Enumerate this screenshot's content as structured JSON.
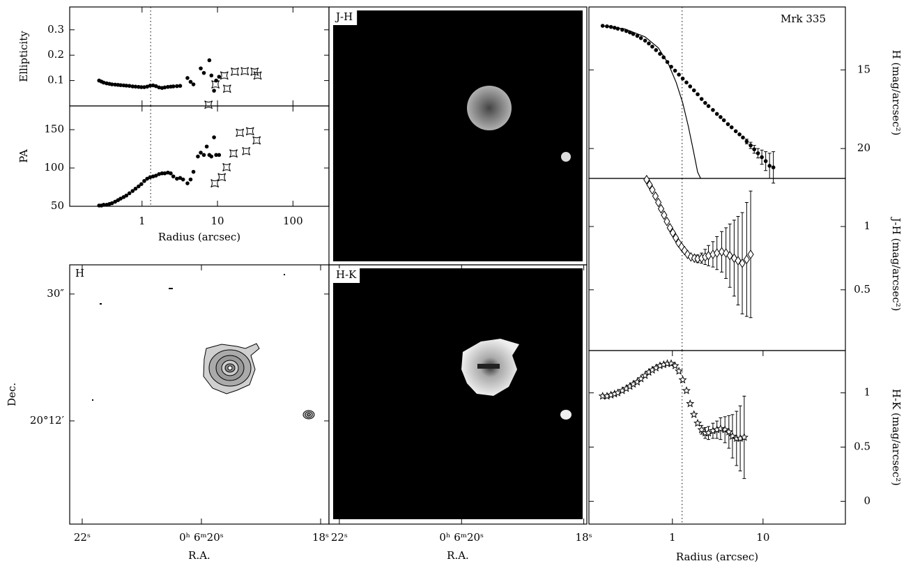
{
  "chart_data": [
    {
      "type": "scatter",
      "ylabel": "Ellipticity",
      "xlog": true,
      "xlim": [
        0.11,
        300
      ],
      "ylim": [
        0,
        0.39
      ],
      "yticks": [
        0.1,
        0.2,
        0.3
      ],
      "vline": 1.3,
      "series": [
        {
          "marker": "circle",
          "color": "#000",
          "x": [
            0.27,
            0.29,
            0.31,
            0.34,
            0.37,
            0.4,
            0.44,
            0.48,
            0.52,
            0.57,
            0.62,
            0.68,
            0.75,
            0.82,
            0.9,
            0.98,
            1.07,
            1.17,
            1.28,
            1.4,
            1.53,
            1.68,
            1.84,
            2.0,
            2.2,
            2.4,
            2.6,
            2.9,
            3.2,
            4.0,
            4.4,
            4.8,
            6.0,
            6.6,
            7.8,
            8.3,
            9.0,
            9.6,
            10.5
          ],
          "values": [
            0.1,
            0.096,
            0.092,
            0.089,
            0.087,
            0.085,
            0.084,
            0.083,
            0.082,
            0.081,
            0.08,
            0.079,
            0.077,
            0.076,
            0.075,
            0.074,
            0.074,
            0.076,
            0.08,
            0.081,
            0.078,
            0.073,
            0.071,
            0.073,
            0.075,
            0.076,
            0.077,
            0.078,
            0.079,
            0.11,
            0.095,
            0.085,
            0.148,
            0.13,
            0.18,
            0.12,
            0.06,
            0.1,
            0.115
          ]
        },
        {
          "marker": "square",
          "color": "#000",
          "x": [
            7.6,
            9.4,
            12.3,
            13.4,
            17,
            23,
            31,
            34
          ],
          "values": [
            0.005,
            0.085,
            0.12,
            0.068,
            0.135,
            0.137,
            0.135,
            0.12
          ]
        }
      ]
    },
    {
      "type": "scatter",
      "ylabel": "PA",
      "xlabel": "Radius (arcsec)",
      "xlog": true,
      "xlim": [
        0.11,
        300
      ],
      "ylim": [
        50,
        181
      ],
      "yticks": [
        50,
        100,
        150
      ],
      "xticks": [
        1,
        10,
        100
      ],
      "vline": 1.3,
      "series": [
        {
          "marker": "circle",
          "color": "#000",
          "x": [
            0.27,
            0.29,
            0.31,
            0.34,
            0.37,
            0.4,
            0.44,
            0.48,
            0.52,
            0.57,
            0.62,
            0.68,
            0.75,
            0.82,
            0.9,
            0.98,
            1.07,
            1.17,
            1.28,
            1.4,
            1.53,
            1.68,
            1.84,
            2.0,
            2.2,
            2.4,
            2.6,
            2.9,
            3.2,
            3.5,
            4.0,
            4.4,
            4.8,
            5.5,
            6.0,
            6.6,
            7.2,
            7.8,
            8.3,
            9.0,
            9.6,
            10.5
          ],
          "values": [
            51,
            51,
            52,
            52,
            53,
            54,
            56,
            58,
            60,
            62,
            64,
            67,
            70,
            73,
            76,
            79,
            83,
            86,
            88,
            89,
            90,
            92,
            93,
            93,
            94,
            93,
            89,
            86,
            87,
            85,
            80,
            85,
            95,
            115,
            120,
            117,
            128,
            117,
            115,
            140,
            117,
            117
          ]
        },
        {
          "marker": "square",
          "color": "#000",
          "x": [
            9.2,
            11.4,
            13.2,
            16.3,
            19.8,
            24,
            27,
            33
          ],
          "values": [
            80,
            88,
            101,
            119,
            146,
            122,
            148,
            136
          ]
        }
      ]
    },
    {
      "type": "image",
      "title": "H",
      "xlabel": "R.A.",
      "ylabel": "Dec.",
      "xlim": [
        22.21,
        17.86
      ],
      "ylim": [
        -24.4,
        36.9
      ],
      "xticks": [
        {
          "value": 22,
          "label": "22ˢ"
        },
        {
          "value": 20,
          "label": "0ʰ 6ᵐ20ˢ"
        },
        {
          "value": 18,
          "label": "18ˢ"
        }
      ],
      "yticks": [
        {
          "value": 30,
          "label": "30″"
        },
        {
          "value": 0,
          "label": "20°12′"
        }
      ]
    },
    {
      "type": "image",
      "title": "J-H"
    },
    {
      "type": "image",
      "title": "H-K",
      "xlabel": "R.A.",
      "xlim": [
        22.17,
        17.95
      ],
      "xticks": [
        {
          "value": 22,
          "label": "22ˢ"
        },
        {
          "value": 20,
          "label": "0ʰ 6ᵐ20ˢ"
        },
        {
          "value": 18,
          "label": "18ˢ"
        }
      ]
    },
    {
      "type": "scatter",
      "ylabel": "H (mag/arcsec²)",
      "annotation": "Mrk 335",
      "xlog": true,
      "xlim": [
        0.12,
        81
      ],
      "ylim": [
        21.9,
        11.0
      ],
      "yticks": [
        15,
        20
      ],
      "vline": 1.28,
      "series": [
        {
          "marker": "circle",
          "color": "#000",
          "x": [
            0.17,
            0.19,
            0.21,
            0.23,
            0.25,
            0.28,
            0.31,
            0.34,
            0.37,
            0.41,
            0.45,
            0.5,
            0.55,
            0.6,
            0.66,
            0.73,
            0.8,
            0.88,
            0.97,
            1.07,
            1.18,
            1.3,
            1.43,
            1.57,
            1.73,
            1.9,
            2.1,
            2.3,
            2.5,
            2.8,
            3.1,
            3.4,
            3.7,
            4.1,
            4.5,
            5.0,
            5.5,
            6.0,
            6.6,
            7.3,
            8.0,
            8.8,
            9.7,
            10.7,
            11.8,
            13
          ],
          "values": [
            12.2,
            12.23,
            12.27,
            12.32,
            12.38,
            12.45,
            12.53,
            12.62,
            12.72,
            12.84,
            12.98,
            13.14,
            13.32,
            13.52,
            13.74,
            13.98,
            14.2,
            14.5,
            14.8,
            15.05,
            15.3,
            15.55,
            15.8,
            16.05,
            16.3,
            16.55,
            16.85,
            17.1,
            17.3,
            17.55,
            17.8,
            18.0,
            18.2,
            18.45,
            18.65,
            18.9,
            19.1,
            19.3,
            19.55,
            19.8,
            20.05,
            20.3,
            20.55,
            20.8,
            21.1,
            21.2
          ],
          "errors": [
            null,
            null,
            null,
            null,
            null,
            null,
            null,
            null,
            null,
            null,
            null,
            null,
            null,
            null,
            null,
            null,
            null,
            null,
            null,
            null,
            null,
            null,
            null,
            null,
            null,
            null,
            null,
            null,
            null,
            null,
            null,
            null,
            null,
            null,
            null,
            null,
            null,
            null,
            0.15,
            0.2,
            0.25,
            0.3,
            0.45,
            0.6,
            0.8,
            1.0
          ]
        },
        {
          "line": true,
          "color": "#000",
          "x": [
            0.17,
            0.3,
            0.5,
            0.7,
            0.9,
            1.1,
            1.3,
            1.5,
            1.7,
            1.9,
            2.05
          ],
          "values": [
            12.2,
            12.4,
            12.9,
            13.6,
            14.6,
            15.8,
            17.1,
            18.6,
            20.1,
            21.5,
            21.9
          ]
        }
      ]
    },
    {
      "type": "scatter",
      "ylabel": "J-H (mag/arcsec²)",
      "xlog": true,
      "xlim": [
        0.12,
        81
      ],
      "ylim": [
        0.02,
        1.38
      ],
      "yticks": [
        0.5,
        1
      ],
      "vline": 1.28,
      "series": [
        {
          "marker": "diamond",
          "color": "#000",
          "x": [
            0.52,
            0.56,
            0.6,
            0.65,
            0.7,
            0.75,
            0.81,
            0.87,
            0.94,
            1.01,
            1.09,
            1.17,
            1.26,
            1.36,
            1.47,
            1.6,
            1.75,
            1.9,
            2.1,
            2.3,
            2.5,
            2.8,
            3.1,
            3.5,
            3.9,
            4.3,
            4.8,
            5.3,
            5.9,
            6.6,
            7.3
          ],
          "values": [
            1.37,
            1.33,
            1.29,
            1.24,
            1.19,
            1.14,
            1.09,
            1.04,
            0.99,
            0.95,
            0.91,
            0.87,
            0.84,
            0.81,
            0.78,
            0.76,
            0.75,
            0.745,
            0.75,
            0.76,
            0.77,
            0.78,
            0.79,
            0.8,
            0.79,
            0.77,
            0.75,
            0.73,
            0.71,
            0.74,
            0.78
          ],
          "errors": [
            null,
            null,
            null,
            null,
            null,
            null,
            null,
            null,
            null,
            null,
            null,
            null,
            null,
            null,
            null,
            null,
            null,
            0.03,
            0.04,
            0.06,
            0.08,
            0.1,
            0.13,
            0.16,
            0.2,
            0.25,
            0.3,
            0.35,
            0.4,
            0.45,
            0.5
          ]
        }
      ]
    },
    {
      "type": "scatter",
      "ylabel": "H-K (mag/arcsec²)",
      "xlabel": "Radius (arcsec)",
      "xlog": true,
      "xlim": [
        0.12,
        81
      ],
      "ylim": [
        -0.21,
        1.39
      ],
      "yticks": [
        0,
        0.5,
        1
      ],
      "xticks": [
        1,
        10
      ],
      "vline": 1.28,
      "series": [
        {
          "marker": "star",
          "color": "#000",
          "x": [
            0.17,
            0.19,
            0.21,
            0.23,
            0.25,
            0.28,
            0.31,
            0.34,
            0.37,
            0.41,
            0.45,
            0.5,
            0.55,
            0.6,
            0.66,
            0.73,
            0.8,
            0.88,
            0.97,
            1.07,
            1.18,
            1.3,
            1.43,
            1.57,
            1.73,
            1.9,
            2.1,
            2.3,
            2.5,
            2.8,
            3.1,
            3.4,
            3.8,
            4.2,
            4.6,
            5.1,
            5.6,
            6.2
          ],
          "values": [
            0.97,
            0.97,
            0.98,
            0.99,
            1.0,
            1.02,
            1.04,
            1.06,
            1.08,
            1.1,
            1.13,
            1.16,
            1.19,
            1.21,
            1.23,
            1.25,
            1.26,
            1.27,
            1.27,
            1.25,
            1.2,
            1.12,
            1.02,
            0.9,
            0.8,
            0.72,
            0.66,
            0.63,
            0.63,
            0.65,
            0.66,
            0.67,
            0.66,
            0.64,
            0.6,
            0.58,
            0.58,
            0.59
          ],
          "errors": [
            null,
            null,
            null,
            null,
            null,
            null,
            null,
            null,
            null,
            null,
            null,
            null,
            null,
            null,
            null,
            null,
            null,
            null,
            null,
            null,
            null,
            null,
            null,
            null,
            null,
            null,
            0.04,
            0.05,
            0.06,
            0.07,
            0.08,
            0.1,
            0.12,
            0.15,
            0.2,
            0.25,
            0.3,
            0.38
          ]
        }
      ]
    }
  ]
}
